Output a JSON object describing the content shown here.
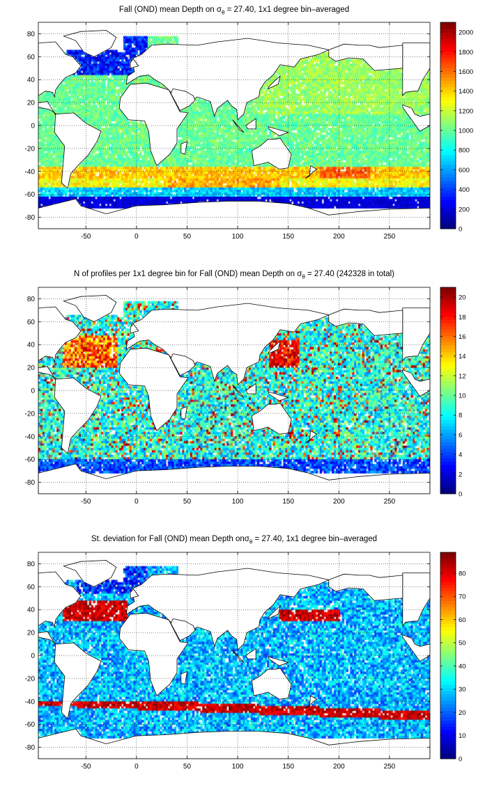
{
  "maps": [
    {
      "title_pre": "Fall (OND) mean Depth on ",
      "sym": "σ",
      "sub": "θ",
      "title_post": " = 27.40, 1x1 degree bin–averaged",
      "x_ticks": [
        "-50",
        "0",
        "50",
        "100",
        "150",
        "200",
        "250"
      ],
      "y_ticks": [
        "80",
        "60",
        "40",
        "20",
        "0",
        "-20",
        "-40",
        "-60",
        "-80"
      ],
      "cbar_ticks": [
        "2000",
        "1800",
        "1600",
        "1400",
        "1200",
        "1000",
        "800",
        "600",
        "400",
        "200",
        "0"
      ],
      "variable": "mean depth"
    },
    {
      "title_pre": "N of profiles per 1x1 degree bin for Fall (OND) mean Depth on ",
      "sym": "σ",
      "sub": "θ",
      "title_post": " = 27.40 (242328 in total)",
      "x_ticks": [
        "-50",
        "0",
        "50",
        "100",
        "150",
        "200",
        "250"
      ],
      "y_ticks": [
        "80",
        "60",
        "40",
        "20",
        "0",
        "-20",
        "-40",
        "-60",
        "-80"
      ],
      "cbar_ticks": [
        "20",
        "18",
        "16",
        "14",
        "12",
        "10",
        "8",
        "6",
        "4",
        "2",
        "0"
      ],
      "variable": "profile count"
    },
    {
      "title_pre": "St. deviation for Fall (OND) mean Depth on",
      "sym": "σ",
      "sub": "θ",
      "title_post": " = 27.40, 1x1 degree bin–averaged",
      "x_ticks": [
        "-50",
        "0",
        "50",
        "100",
        "150",
        "200",
        "250"
      ],
      "y_ticks": [
        "80",
        "60",
        "40",
        "20",
        "0",
        "-20",
        "-40",
        "-60",
        "-80"
      ],
      "cbar_ticks": [
        "80",
        "70",
        "60",
        "50",
        "40",
        "30",
        "20",
        "10",
        "0"
      ],
      "variable": "standard deviation"
    }
  ],
  "colors": {
    "colormap": "jet",
    "land": "#ffffff",
    "coastline": "#000000",
    "grid": "#000000"
  }
}
